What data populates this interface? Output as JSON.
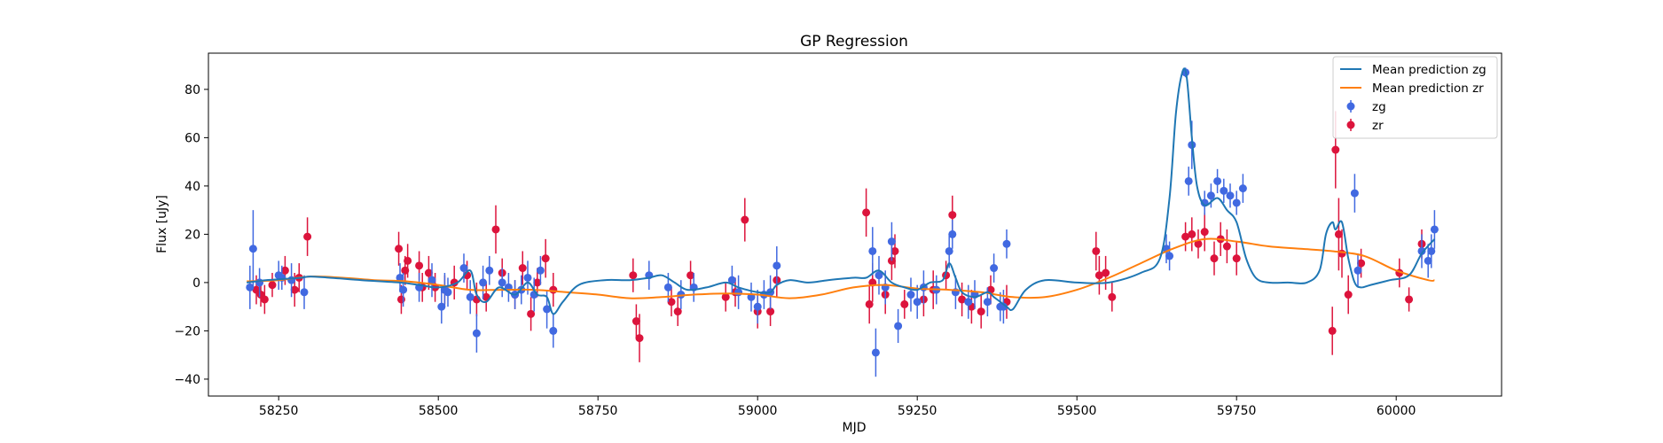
{
  "chart_data": {
    "type": "scatter",
    "title": "GP Regression",
    "xlabel": "MJD",
    "ylabel": "Flux [uJy]",
    "xlim": [
      58140,
      60165
    ],
    "ylim": [
      -47,
      95
    ],
    "xticks": [
      58250,
      58500,
      58750,
      59000,
      59250,
      59500,
      59750,
      60000
    ],
    "yticks": [
      -40,
      -20,
      0,
      20,
      40,
      60,
      80
    ],
    "grid": false,
    "legend_position": "top-right",
    "colors": {
      "zg_line": "#1f77b4",
      "zr_line": "#ff7f0e",
      "zg_points": "#4169e1",
      "zr_points": "#dc143c"
    },
    "legend": [
      {
        "label": "Mean prediction zg",
        "kind": "line",
        "color": "#1f77b4"
      },
      {
        "label": "Mean prediction zr",
        "kind": "line",
        "color": "#ff7f0e"
      },
      {
        "label": "zg",
        "kind": "errorbar",
        "color": "#4169e1"
      },
      {
        "label": "zr",
        "kind": "errorbar",
        "color": "#dc143c"
      }
    ],
    "series": [
      {
        "name": "Mean prediction zg",
        "kind": "line",
        "x": [
          58200,
          58230,
          58260,
          58285,
          58300,
          58330,
          58380,
          58440,
          58470,
          58500,
          58530,
          58550,
          58560,
          58575,
          58595,
          58620,
          58640,
          58655,
          58670,
          58680,
          58695,
          58720,
          58760,
          58800,
          58830,
          58850,
          58870,
          58890,
          58920,
          58950,
          58970,
          59000,
          59020,
          59030,
          59050,
          59080,
          59110,
          59150,
          59170,
          59190,
          59210,
          59230,
          59250,
          59270,
          59290,
          59300,
          59310,
          59320,
          59340,
          59360,
          59370,
          59380,
          59390,
          59400,
          59420,
          59450,
          59500,
          59550,
          59600,
          59630,
          59645,
          59655,
          59665,
          59672,
          59680,
          59688,
          59700,
          59720,
          59735,
          59750,
          59765,
          59780,
          59800,
          59830,
          59860,
          59880,
          59890,
          59900,
          59905,
          59915,
          59925,
          59935,
          59945,
          59960,
          59990,
          60020,
          60040,
          60060
        ],
        "y": [
          0,
          1,
          1.5,
          2,
          2.5,
          2,
          1,
          0,
          -1,
          -2,
          0,
          5,
          -5,
          -8,
          -2,
          -5,
          0,
          -5,
          -6,
          -13,
          -8,
          -1,
          1,
          1,
          2,
          3,
          0,
          -3,
          -2,
          0,
          -2,
          -4,
          -4,
          -1,
          1,
          0,
          1,
          2,
          2,
          5,
          0,
          -2,
          -3,
          0,
          1,
          8,
          2,
          -4,
          -6,
          -4,
          -6,
          -8,
          -10,
          -11,
          -3,
          1,
          0,
          0,
          4,
          10,
          35,
          70,
          87,
          85,
          60,
          40,
          32,
          35,
          30,
          25,
          10,
          2,
          0,
          0,
          0,
          5,
          20,
          25,
          22,
          25,
          10,
          0,
          -2,
          -1,
          1,
          3,
          12,
          18
        ]
      },
      {
        "name": "Mean prediction zr",
        "kind": "line",
        "x": [
          58200,
          58250,
          58300,
          58350,
          58400,
          58450,
          58500,
          58550,
          58600,
          58650,
          58700,
          58750,
          58800,
          58850,
          58900,
          58950,
          59000,
          59050,
          59100,
          59150,
          59200,
          59250,
          59300,
          59350,
          59400,
          59450,
          59500,
          59550,
          59600,
          59650,
          59700,
          59750,
          59800,
          59850,
          59900,
          59950,
          60000,
          60050,
          60060
        ],
        "y": [
          0.5,
          1,
          2.5,
          2,
          1,
          0.5,
          -1,
          -3,
          -3,
          -3,
          -4,
          -5,
          -6.5,
          -6,
          -5,
          -4.5,
          -5,
          -6.5,
          -5,
          -2,
          -1,
          -2.5,
          -3,
          -4,
          -6,
          -6,
          -3,
          2,
          8,
          14,
          18,
          17,
          15,
          14,
          13,
          11,
          5,
          1,
          1
        ]
      },
      {
        "name": "zg",
        "kind": "errorbar",
        "x": [
          58205,
          58210,
          58220,
          58250,
          58255,
          58270,
          58290,
          58440,
          58445,
          58470,
          58490,
          58505,
          58510,
          58515,
          58540,
          58550,
          58560,
          58570,
          58580,
          58600,
          58610,
          58620,
          58630,
          58640,
          58650,
          58660,
          58670,
          58680,
          58830,
          58860,
          58880,
          58900,
          58960,
          58970,
          58990,
          59000,
          59010,
          59020,
          59030,
          59180,
          59185,
          59190,
          59200,
          59210,
          59220,
          59240,
          59250,
          59260,
          59280,
          59300,
          59305,
          59310,
          59330,
          59340,
          59360,
          59370,
          59380,
          59385,
          59390,
          59640,
          59645,
          59670,
          59675,
          59680,
          59700,
          59710,
          59720,
          59730,
          59740,
          59750,
          59760,
          59935,
          59940,
          60040,
          60050,
          60055,
          60060
        ],
        "y": [
          -2,
          14,
          0,
          3,
          2,
          1,
          -4,
          2,
          -3,
          -2,
          1,
          -10,
          -3,
          -4,
          6,
          -6,
          -21,
          0,
          5,
          0,
          -2,
          -5,
          -3,
          2,
          -5,
          5,
          -11,
          -20,
          3,
          -2,
          -5,
          -2,
          1,
          -4,
          -6,
          -10,
          -5,
          -4,
          7,
          13,
          -29,
          3,
          -2,
          17,
          -18,
          -5,
          -8,
          -2,
          -3,
          13,
          20,
          -4,
          -8,
          -5,
          -8,
          6,
          -10,
          -10,
          16,
          14,
          11,
          87,
          42,
          57,
          33,
          36,
          42,
          38,
          36,
          33,
          39,
          37,
          5,
          13,
          9,
          13,
          22
        ],
        "err": [
          9,
          16,
          6,
          6,
          5,
          7,
          7,
          6,
          7,
          6,
          7,
          7,
          7,
          6,
          6,
          7,
          8,
          7,
          6,
          6,
          6,
          6,
          6,
          7,
          7,
          6,
          8,
          7,
          6,
          6,
          6,
          6,
          6,
          7,
          6,
          7,
          6,
          7,
          8,
          10,
          10,
          8,
          7,
          8,
          7,
          7,
          7,
          7,
          6,
          7,
          6,
          7,
          7,
          6,
          6,
          6,
          6,
          7,
          6,
          6,
          6,
          2,
          6,
          10,
          5,
          5,
          5,
          5,
          5,
          5,
          6,
          8,
          7,
          7,
          7,
          7,
          8
        ]
      },
      {
        "name": "zr",
        "kind": "errorbar",
        "x": [
          58215,
          58222,
          58228,
          58240,
          58260,
          58275,
          58282,
          58295,
          58438,
          58442,
          58448,
          58452,
          58470,
          58475,
          58485,
          58495,
          58510,
          58525,
          58545,
          58560,
          58575,
          58590,
          58600,
          58620,
          58632,
          58645,
          58655,
          58668,
          58680,
          58805,
          58810,
          58815,
          58865,
          58875,
          58895,
          58950,
          58965,
          58980,
          59000,
          59020,
          59030,
          59170,
          59175,
          59180,
          59200,
          59210,
          59215,
          59230,
          59260,
          59275,
          59295,
          59305,
          59320,
          59335,
          59350,
          59365,
          59390,
          59530,
          59535,
          59545,
          59555,
          59670,
          59680,
          59690,
          59700,
          59715,
          59725,
          59735,
          59750,
          59900,
          59905,
          59910,
          59915,
          59925,
          59945,
          60005,
          60020,
          60040
        ],
        "y": [
          -3,
          -5,
          -7,
          -1,
          5,
          -3,
          2,
          19,
          14,
          -7,
          5,
          9,
          7,
          -2,
          4,
          -2,
          -3,
          0,
          3,
          -7,
          -6,
          22,
          4,
          -5,
          6,
          -13,
          0,
          10,
          -3,
          3,
          -16,
          -23,
          -8,
          -12,
          3,
          -6,
          -4,
          26,
          -12,
          -12,
          1,
          29,
          -9,
          0,
          -5,
          9,
          13,
          -9,
          -7,
          -3,
          3,
          28,
          -7,
          -10,
          -12,
          -3,
          -8,
          13,
          3,
          4,
          -6,
          19,
          20,
          16,
          21,
          10,
          18,
          15,
          10,
          -20,
          55,
          20,
          12,
          -5,
          8,
          4,
          -7,
          16
        ],
        "err": [
          6,
          5,
          6,
          5,
          6,
          7,
          6,
          8,
          7,
          6,
          6,
          7,
          6,
          6,
          7,
          6,
          6,
          7,
          6,
          7,
          6,
          10,
          6,
          6,
          7,
          7,
          6,
          8,
          7,
          7,
          7,
          10,
          6,
          6,
          6,
          6,
          6,
          9,
          7,
          6,
          7,
          10,
          8,
          8,
          8,
          8,
          7,
          6,
          7,
          8,
          6,
          8,
          7,
          7,
          7,
          6,
          7,
          8,
          8,
          7,
          6,
          6,
          7,
          6,
          8,
          7,
          7,
          7,
          7,
          10,
          16,
          15,
          10,
          8,
          6,
          6,
          5,
          6
        ]
      }
    ]
  }
}
